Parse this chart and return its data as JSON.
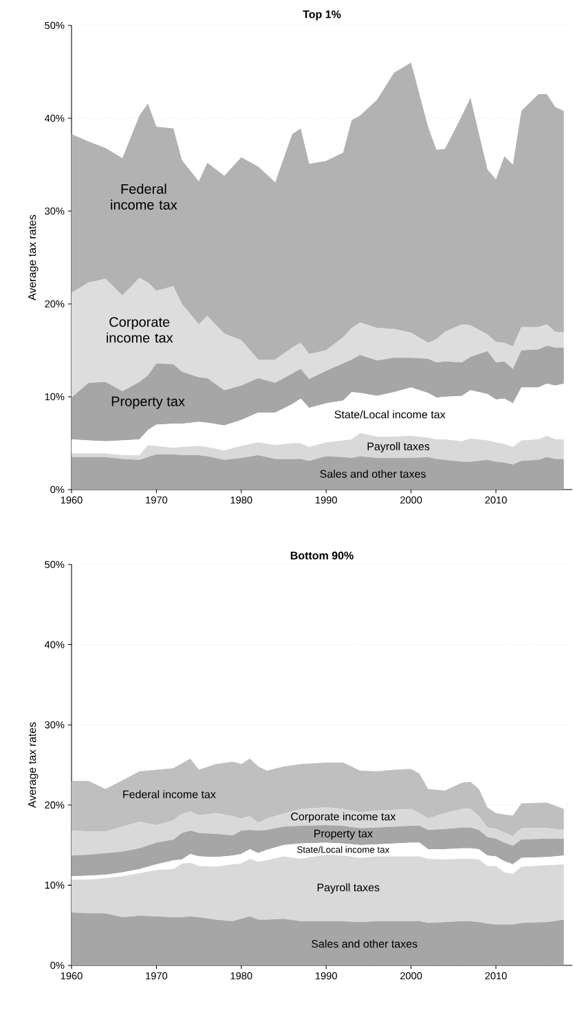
{
  "chart_data": [
    {
      "type": "area",
      "title": "Top 1%",
      "ylabel": "Average tax rates",
      "stacked": true,
      "grid": "y",
      "xlim": [
        1960,
        2019
      ],
      "ylim": [
        0,
        50
      ],
      "xticks": [
        1960,
        1970,
        1980,
        1990,
        2000,
        2010
      ],
      "yticks": [
        {
          "value": 0,
          "label": "0%"
        },
        {
          "value": 10,
          "label": "10%"
        },
        {
          "value": 20,
          "label": "20%"
        },
        {
          "value": 30,
          "label": "30%"
        },
        {
          "value": 40,
          "label": "40%"
        },
        {
          "value": 50,
          "label": "50%"
        }
      ],
      "x": [
        1960,
        1962,
        1964,
        1966,
        1968,
        1969,
        1970,
        1972,
        1973,
        1975,
        1976,
        1978,
        1980,
        1982,
        1984,
        1986,
        1987,
        1988,
        1990,
        1992,
        1993,
        1994,
        1996,
        1998,
        2000,
        2002,
        2003,
        2004,
        2006,
        2007,
        2009,
        2010,
        2011,
        2012,
        2013,
        2015,
        2016,
        2017,
        2018
      ],
      "series": [
        {
          "name": "Sales and other taxes",
          "color": "#a6a6a6",
          "values": [
            3.5,
            3.5,
            3.5,
            3.3,
            3.2,
            3.5,
            3.8,
            3.8,
            3.7,
            3.7,
            3.6,
            3.2,
            3.4,
            3.7,
            3.3,
            3.3,
            3.3,
            3.1,
            3.6,
            3.5,
            3.4,
            3.6,
            3.4,
            3.4,
            3.4,
            3.5,
            3.3,
            3.2,
            3.0,
            3.0,
            3.2,
            3.0,
            2.9,
            2.7,
            3.1,
            3.2,
            3.5,
            3.3,
            3.3
          ]
        },
        {
          "name": "Payroll taxes",
          "color": "#d9d9d9",
          "values": [
            0.4,
            0.4,
            0.4,
            0.4,
            0.5,
            1.3,
            0.9,
            0.7,
            0.9,
            1.0,
            1.0,
            1.0,
            1.3,
            1.4,
            1.5,
            1.7,
            1.7,
            1.5,
            1.5,
            1.8,
            2.0,
            2.5,
            2.3,
            2.3,
            2.4,
            2.1,
            2.1,
            2.2,
            2.2,
            2.5,
            2.1,
            2.1,
            2.0,
            1.9,
            2.2,
            2.2,
            2.3,
            2.1,
            2.1
          ]
        },
        {
          "name": "State/Local income tax",
          "color": "#ffffff",
          "values": [
            1.5,
            1.4,
            1.3,
            1.6,
            1.7,
            1.6,
            2.3,
            2.6,
            2.5,
            2.6,
            2.6,
            2.7,
            2.8,
            3.2,
            3.5,
            4.2,
            4.8,
            4.2,
            4.2,
            4.3,
            5.1,
            4.3,
            4.4,
            4.8,
            5.2,
            4.8,
            4.5,
            4.6,
            4.9,
            5.2,
            5.0,
            4.6,
            4.9,
            4.7,
            5.7,
            5.6,
            5.6,
            5.8,
            6.0
          ]
        },
        {
          "name": "Property tax",
          "color": "#a6a6a6",
          "values": [
            4.5,
            6.2,
            6.4,
            5.3,
            6.2,
            5.9,
            6.6,
            6.4,
            5.6,
            4.8,
            4.8,
            3.8,
            3.7,
            3.7,
            3.2,
            3.3,
            3.2,
            3.1,
            3.5,
            4.0,
            3.5,
            4.1,
            3.8,
            3.7,
            3.2,
            3.7,
            3.8,
            3.8,
            3.6,
            3.6,
            4.6,
            4.0,
            4.0,
            3.7,
            4.0,
            4.1,
            4.1,
            4.1,
            3.9
          ]
        },
        {
          "name": "Corporate income tax",
          "color": "#dddddd",
          "values": [
            11.3,
            10.8,
            11.1,
            10.3,
            11.2,
            10.0,
            7.8,
            8.4,
            7.3,
            5.7,
            6.7,
            6.1,
            4.9,
            2.0,
            2.5,
            2.8,
            2.8,
            2.7,
            2.2,
            2.8,
            3.4,
            3.5,
            3.5,
            3.1,
            2.7,
            1.7,
            2.5,
            3.2,
            4.1,
            3.4,
            1.8,
            2.2,
            2.0,
            2.4,
            2.5,
            2.4,
            2.3,
            1.7,
            1.6
          ]
        },
        {
          "name": "Federal income tax",
          "color": "#b2b2b2",
          "values": [
            17.1,
            15.2,
            14.1,
            14.8,
            17.5,
            19.3,
            17.7,
            17.0,
            15.5,
            15.4,
            16.5,
            17.0,
            19.7,
            20.8,
            19.1,
            23.0,
            23.1,
            20.5,
            20.4,
            19.9,
            22.4,
            22.3,
            24.6,
            27.6,
            29.1,
            23.3,
            20.4,
            19.7,
            22.5,
            24.5,
            17.8,
            17.5,
            20.1,
            19.6,
            23.3,
            25.1,
            24.8,
            24.2,
            23.9
          ]
        }
      ]
    },
    {
      "type": "area",
      "title": "Bottom 90%",
      "ylabel": "Average tax rates",
      "stacked": true,
      "grid": "y",
      "xlim": [
        1960,
        2019
      ],
      "ylim": [
        0,
        50
      ],
      "xticks": [
        1960,
        1970,
        1980,
        1990,
        2000,
        2010
      ],
      "yticks": [
        {
          "value": 0,
          "label": "0%"
        },
        {
          "value": 10,
          "label": "10%"
        },
        {
          "value": 20,
          "label": "20%"
        },
        {
          "value": 30,
          "label": "30%"
        },
        {
          "value": 40,
          "label": "40%"
        },
        {
          "value": 50,
          "label": "50%"
        }
      ],
      "x": [
        1960,
        1962,
        1964,
        1966,
        1968,
        1970,
        1972,
        1973,
        1974,
        1975,
        1977,
        1979,
        1980,
        1981,
        1982,
        1983,
        1985,
        1987,
        1990,
        1992,
        1994,
        1996,
        1998,
        2000,
        2001,
        2002,
        2004,
        2006,
        2007,
        2008,
        2009,
        2010,
        2011,
        2012,
        2013,
        2016,
        2018
      ],
      "series": [
        {
          "name": "Sales and other taxes",
          "color": "#a6a6a6",
          "values": [
            6.6,
            6.5,
            6.5,
            6.0,
            6.2,
            6.1,
            6.0,
            6.0,
            6.1,
            6.0,
            5.7,
            5.5,
            5.8,
            6.1,
            5.7,
            5.7,
            5.8,
            5.5,
            5.5,
            5.5,
            5.4,
            5.5,
            5.5,
            5.5,
            5.5,
            5.3,
            5.4,
            5.5,
            5.5,
            5.4,
            5.2,
            5.1,
            5.1,
            5.1,
            5.3,
            5.4,
            5.7
          ]
        },
        {
          "name": "Payroll taxes",
          "color": "#d9d9d9",
          "values": [
            4.1,
            4.2,
            4.4,
            5.1,
            5.3,
            5.8,
            6.0,
            6.7,
            6.7,
            6.4,
            6.6,
            7.1,
            6.9,
            7.2,
            7.2,
            7.4,
            7.8,
            7.8,
            8.3,
            8.2,
            8.0,
            8.1,
            8.1,
            8.1,
            8.1,
            8.0,
            7.8,
            7.8,
            7.8,
            7.8,
            7.2,
            7.3,
            6.5,
            6.3,
            7.0,
            7.1,
            6.9
          ]
        },
        {
          "name": "State/Local income tax",
          "color": "#ffffff",
          "values": [
            0.4,
            0.5,
            0.4,
            0.5,
            0.5,
            0.7,
            1.1,
            0.5,
            1.1,
            1.2,
            1.2,
            1.1,
            1.2,
            1.2,
            1.1,
            1.3,
            1.4,
            1.9,
            1.5,
            1.5,
            1.6,
            1.5,
            1.6,
            1.7,
            1.7,
            1.2,
            1.3,
            1.3,
            1.3,
            1.3,
            1.3,
            1.2,
            1.4,
            1.2,
            1.1,
            1.0,
            1.1
          ]
        },
        {
          "name": "Property tax",
          "color": "#a6a6a6",
          "values": [
            2.6,
            2.6,
            2.7,
            2.6,
            2.6,
            2.7,
            2.6,
            3.3,
            2.9,
            2.9,
            2.9,
            2.5,
            2.9,
            2.4,
            2.8,
            2.5,
            2.3,
            2.2,
            2.2,
            2.2,
            2.1,
            2.1,
            2.1,
            2.1,
            2.1,
            2.4,
            2.5,
            2.6,
            2.6,
            2.4,
            2.3,
            2.2,
            2.3,
            2.3,
            2.3,
            2.3,
            2.1
          ]
        },
        {
          "name": "Corporate income tax",
          "color": "#d9d9d9",
          "values": [
            3.1,
            2.9,
            2.7,
            3.1,
            3.3,
            2.2,
            2.4,
            2.4,
            2.4,
            2.2,
            2.6,
            2.4,
            1.5,
            1.7,
            1.0,
            1.4,
            1.6,
            2.1,
            2.2,
            2.1,
            2.0,
            2.1,
            2.1,
            2.1,
            1.6,
            1.4,
            2.0,
            2.3,
            2.3,
            1.7,
            1.2,
            1.2,
            1.3,
            1.2,
            1.4,
            1.3,
            1.1
          ]
        },
        {
          "name": "Federal income tax",
          "color": "#bfbfbf",
          "values": [
            6.2,
            6.3,
            5.3,
            5.8,
            6.3,
            6.9,
            6.5,
            6.3,
            6.6,
            5.7,
            6.1,
            6.8,
            6.8,
            7.2,
            7.0,
            6.0,
            5.9,
            5.6,
            5.6,
            5.8,
            5.2,
            4.9,
            5.0,
            5.0,
            4.9,
            3.7,
            2.8,
            3.3,
            3.4,
            3.4,
            2.5,
            2.0,
            2.2,
            2.6,
            3.1,
            3.2,
            2.6
          ]
        }
      ]
    }
  ]
}
